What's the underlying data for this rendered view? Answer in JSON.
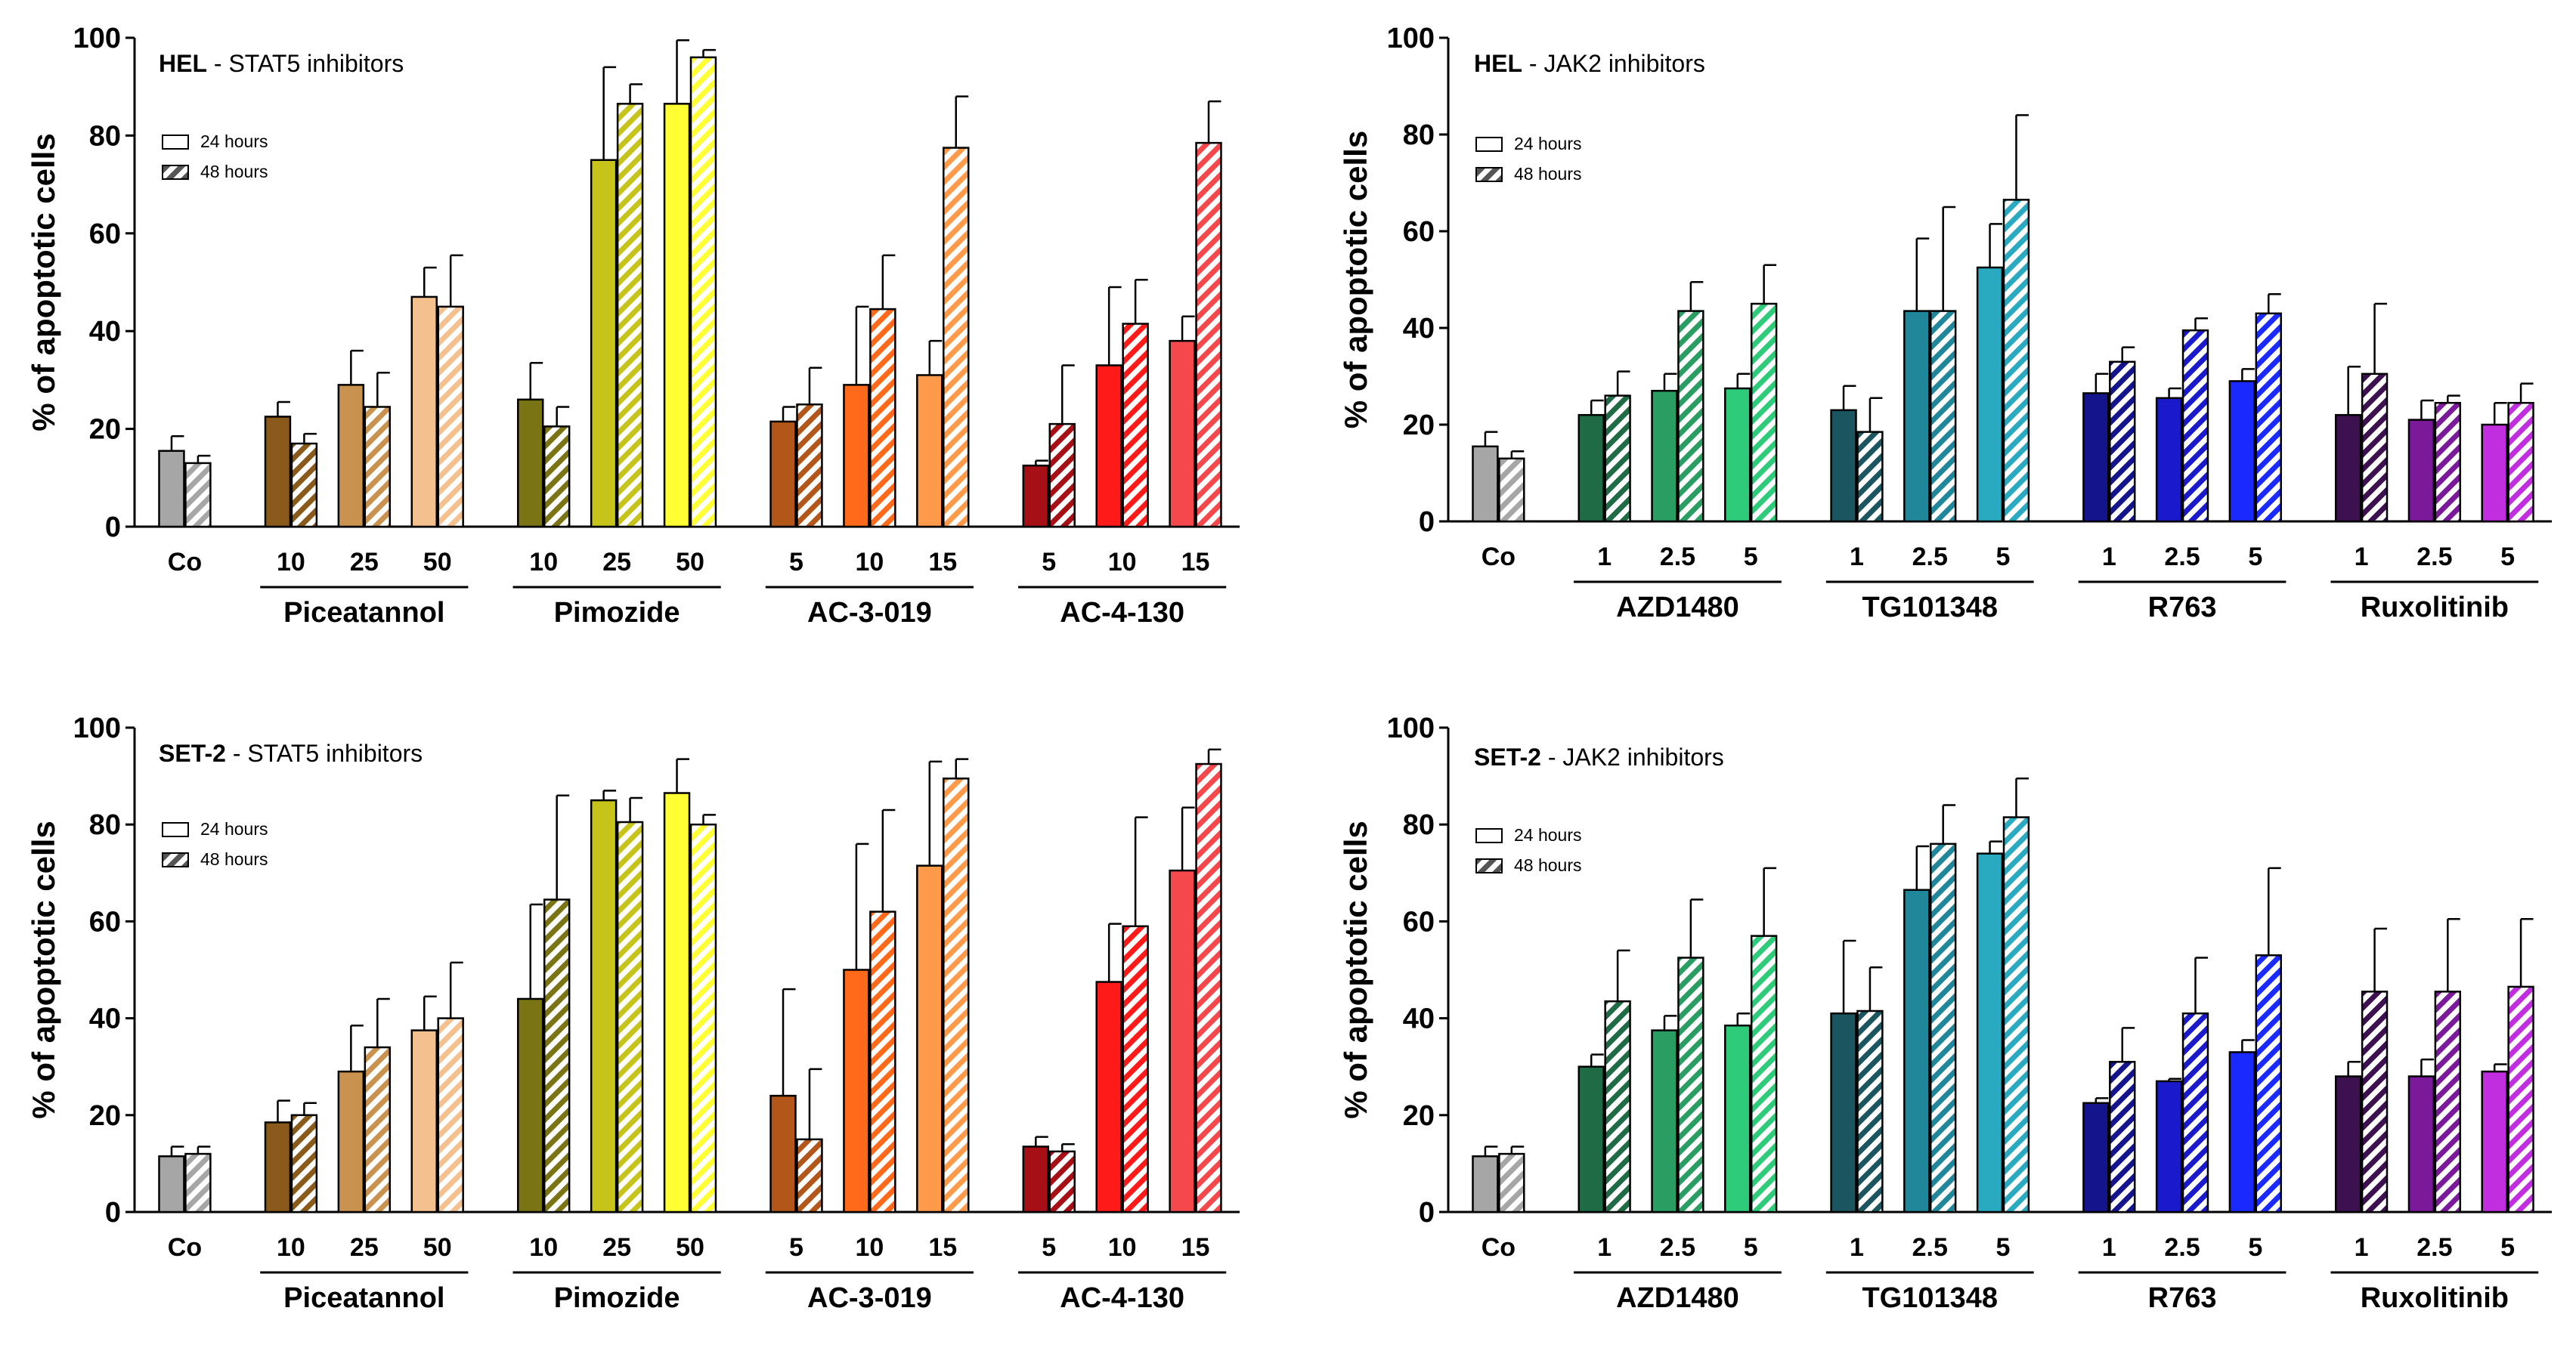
{
  "chart_data": [
    {
      "type": "bar",
      "cell_line": "HEL",
      "title_suffix": " - STAT5 inhibitors",
      "ylabel": "% of apoptotic cells",
      "ylim": [
        0,
        100
      ],
      "yticks": [
        "0",
        "20",
        "40",
        "60",
        "80",
        "100"
      ],
      "legend": [
        "24 hours",
        "48 hours"
      ],
      "groups": [
        {
          "label": "",
          "bars": [
            {
              "tick": "Co",
              "color": "#a6a6a6",
              "v24": 15.5,
              "e24": 3.0,
              "v48": 13.0,
              "e48": 1.5
            }
          ]
        },
        {
          "label": "Piceatannol",
          "bars": [
            {
              "tick": "10",
              "color": "#8a5a1a",
              "v24": 22.5,
              "e24": 3.0,
              "v48": 17.0,
              "e48": 2.0
            },
            {
              "tick": "25",
              "color": "#c9924f",
              "v24": 29.0,
              "e24": 7.0,
              "v48": 24.5,
              "e48": 7.0
            },
            {
              "tick": "50",
              "color": "#f4c08e",
              "v24": 47.0,
              "e24": 6.0,
              "v48": 45.0,
              "e48": 10.5
            }
          ]
        },
        {
          "label": "Pimozide",
          "bars": [
            {
              "tick": "10",
              "color": "#7a7414",
              "v24": 26.0,
              "e24": 7.5,
              "v48": 20.5,
              "e48": 4.0
            },
            {
              "tick": "25",
              "color": "#c6c41a",
              "v24": 75.0,
              "e24": 19.0,
              "v48": 86.5,
              "e48": 4.0
            },
            {
              "tick": "50",
              "color": "#ffff33",
              "v24": 86.5,
              "e24": 13.0,
              "v48": 96.0,
              "e48": 1.5
            }
          ]
        },
        {
          "label": "AC-3-019",
          "bars": [
            {
              "tick": "5",
              "color": "#b2561a",
              "v24": 21.5,
              "e24": 3.0,
              "v48": 25.0,
              "e48": 7.5
            },
            {
              "tick": "10",
              "color": "#ff6a1a",
              "v24": 29.0,
              "e24": 16.0,
              "v48": 44.5,
              "e48": 11.0
            },
            {
              "tick": "15",
              "color": "#ff9a4a",
              "v24": 31.0,
              "e24": 7.0,
              "v48": 77.5,
              "e48": 10.5
            }
          ]
        },
        {
          "label": "AC-4-130",
          "bars": [
            {
              "tick": "5",
              "color": "#a50f15",
              "v24": 12.5,
              "e24": 1.0,
              "v48": 21.0,
              "e48": 12.0
            },
            {
              "tick": "10",
              "color": "#ff1a1a",
              "v24": 33.0,
              "e24": 16.0,
              "v48": 41.5,
              "e48": 9.0
            },
            {
              "tick": "15",
              "color": "#f4484c",
              "v24": 38.0,
              "e24": 5.0,
              "v48": 78.5,
              "e48": 8.5
            }
          ]
        }
      ]
    },
    {
      "type": "bar",
      "cell_line": "HEL",
      "title_suffix": " - JAK2 inhibitors",
      "ylabel": "% of apoptotic cells",
      "ylim": [
        0,
        100
      ],
      "yticks": [
        "0",
        "20",
        "40",
        "60",
        "80",
        "100"
      ],
      "legend": [
        "24 hours",
        "48 hours"
      ],
      "groups": [
        {
          "label": "",
          "bars": [
            {
              "tick": "Co",
              "color": "#a6a6a6",
              "v24": 15.5,
              "e24": 3.0,
              "v48": 13.0,
              "e48": 1.5
            }
          ]
        },
        {
          "label": "AZD1480",
          "bars": [
            {
              "tick": "1",
              "color": "#1e6b45",
              "v24": 22.0,
              "e24": 3.0,
              "v48": 26.0,
              "e48": 5.0
            },
            {
              "tick": "2.5",
              "color": "#2a9e62",
              "v24": 27.0,
              "e24": 3.5,
              "v48": 43.5,
              "e48": 6.0
            },
            {
              "tick": "5",
              "color": "#2ecc7a",
              "v24": 27.5,
              "e24": 3.0,
              "v48": 45.0,
              "e48": 8.0
            }
          ]
        },
        {
          "label": "TG101348",
          "bars": [
            {
              "tick": "1",
              "color": "#1a5560",
              "v24": 23.0,
              "e24": 5.0,
              "v48": 18.5,
              "e48": 7.0
            },
            {
              "tick": "2.5",
              "color": "#20879a",
              "v24": 43.5,
              "e24": 15.0,
              "v48": 43.5,
              "e48": 21.5
            },
            {
              "tick": "5",
              "color": "#2aaac0",
              "v24": 52.5,
              "e24": 9.0,
              "v48": 66.5,
              "e48": 17.5
            }
          ]
        },
        {
          "label": "R763",
          "bars": [
            {
              "tick": "1",
              "color": "#14148c",
              "v24": 26.5,
              "e24": 4.0,
              "v48": 33.0,
              "e48": 3.0
            },
            {
              "tick": "2.5",
              "color": "#1a1acc",
              "v24": 25.5,
              "e24": 2.0,
              "v48": 39.5,
              "e48": 2.5
            },
            {
              "tick": "5",
              "color": "#1a2aff",
              "v24": 29.0,
              "e24": 2.5,
              "v48": 43.0,
              "e48": 4.0
            }
          ]
        },
        {
          "label": "Ruxolitinib",
          "bars": [
            {
              "tick": "1",
              "color": "#3d1050",
              "v24": 22.0,
              "e24": 10.0,
              "v48": 30.5,
              "e48": 14.5
            },
            {
              "tick": "2.5",
              "color": "#7a1a9a",
              "v24": 21.0,
              "e24": 4.0,
              "v48": 24.5,
              "e48": 1.5
            },
            {
              "tick": "5",
              "color": "#c02ee0",
              "v24": 20.0,
              "e24": 4.5,
              "v48": 24.5,
              "e48": 4.0
            }
          ]
        }
      ]
    },
    {
      "type": "bar",
      "cell_line": "SET-2",
      "title_suffix": " - STAT5 inhibitors",
      "ylabel": "% of apoptotic cells",
      "ylim": [
        0,
        100
      ],
      "yticks": [
        "0",
        "20",
        "40",
        "60",
        "80",
        "100"
      ],
      "legend": [
        "24 hours",
        "48 hours"
      ],
      "groups": [
        {
          "label": "",
          "bars": [
            {
              "tick": "Co",
              "color": "#a6a6a6",
              "v24": 11.5,
              "e24": 2.0,
              "v48": 12.0,
              "e48": 1.5
            }
          ]
        },
        {
          "label": "Piceatannol",
          "bars": [
            {
              "tick": "10",
              "color": "#8a5a1a",
              "v24": 18.5,
              "e24": 4.5,
              "v48": 20.0,
              "e48": 2.5
            },
            {
              "tick": "25",
              "color": "#c9924f",
              "v24": 29.0,
              "e24": 9.5,
              "v48": 34.0,
              "e48": 10.0
            },
            {
              "tick": "50",
              "color": "#f4c08e",
              "v24": 37.5,
              "e24": 7.0,
              "v48": 40.0,
              "e48": 11.5
            }
          ]
        },
        {
          "label": "Pimozide",
          "bars": [
            {
              "tick": "10",
              "color": "#7a7414",
              "v24": 44.0,
              "e24": 19.5,
              "v48": 64.5,
              "e48": 21.5
            },
            {
              "tick": "25",
              "color": "#c6c41a",
              "v24": 85.0,
              "e24": 2.0,
              "v48": 80.5,
              "e48": 5.0
            },
            {
              "tick": "50",
              "color": "#ffff33",
              "v24": 86.5,
              "e24": 7.0,
              "v48": 80.0,
              "e48": 2.0
            }
          ]
        },
        {
          "label": "AC-3-019",
          "bars": [
            {
              "tick": "5",
              "color": "#b2561a",
              "v24": 24.0,
              "e24": 22.0,
              "v48": 15.0,
              "e48": 14.5
            },
            {
              "tick": "10",
              "color": "#ff6a1a",
              "v24": 50.0,
              "e24": 26.0,
              "v48": 62.0,
              "e48": 21.0
            },
            {
              "tick": "15",
              "color": "#ff9a4a",
              "v24": 71.5,
              "e24": 21.5,
              "v48": 89.5,
              "e48": 4.0
            }
          ]
        },
        {
          "label": "AC-4-130",
          "bars": [
            {
              "tick": "5",
              "color": "#a50f15",
              "v24": 13.5,
              "e24": 2.0,
              "v48": 12.5,
              "e48": 1.5
            },
            {
              "tick": "10",
              "color": "#ff1a1a",
              "v24": 47.5,
              "e24": 12.0,
              "v48": 59.0,
              "e48": 22.5
            },
            {
              "tick": "15",
              "color": "#f4484c",
              "v24": 70.5,
              "e24": 13.0,
              "v48": 92.5,
              "e48": 3.0
            }
          ]
        }
      ]
    },
    {
      "type": "bar",
      "cell_line": "SET-2",
      "title_suffix": " - JAK2 inhibitors",
      "ylabel": "% of apoptotic cells",
      "ylim": [
        0,
        100
      ],
      "yticks": [
        "0",
        "20",
        "40",
        "60",
        "80",
        "100"
      ],
      "legend": [
        "24 hours",
        "48 hours"
      ],
      "groups": [
        {
          "label": "",
          "bars": [
            {
              "tick": "Co",
              "color": "#a6a6a6",
              "v24": 11.5,
              "e24": 2.0,
              "v48": 12.0,
              "e48": 1.5
            }
          ]
        },
        {
          "label": "AZD1480",
          "bars": [
            {
              "tick": "1",
              "color": "#1e6b45",
              "v24": 30.0,
              "e24": 2.5,
              "v48": 43.5,
              "e48": 10.5
            },
            {
              "tick": "2.5",
              "color": "#2a9e62",
              "v24": 37.5,
              "e24": 3.0,
              "v48": 52.5,
              "e48": 12.0
            },
            {
              "tick": "5",
              "color": "#2ecc7a",
              "v24": 38.5,
              "e24": 2.5,
              "v48": 57.0,
              "e48": 14.0
            }
          ]
        },
        {
          "label": "TG101348",
          "bars": [
            {
              "tick": "1",
              "color": "#1a5560",
              "v24": 41.0,
              "e24": 15.0,
              "v48": 41.5,
              "e48": 9.0
            },
            {
              "tick": "2.5",
              "color": "#20879a",
              "v24": 66.5,
              "e24": 9.0,
              "v48": 76.0,
              "e48": 8.0
            },
            {
              "tick": "5",
              "color": "#2aaac0",
              "v24": 74.0,
              "e24": 2.5,
              "v48": 81.5,
              "e48": 8.0
            }
          ]
        },
        {
          "label": "R763",
          "bars": [
            {
              "tick": "1",
              "color": "#14148c",
              "v24": 22.5,
              "e24": 1.0,
              "v48": 31.0,
              "e48": 7.0
            },
            {
              "tick": "2.5",
              "color": "#1a1acc",
              "v24": 27.0,
              "e24": 0.5,
              "v48": 41.0,
              "e48": 11.5
            },
            {
              "tick": "5",
              "color": "#1a2aff",
              "v24": 33.0,
              "e24": 2.5,
              "v48": 53.0,
              "e48": 18.0
            }
          ]
        },
        {
          "label": "Ruxolitinib",
          "bars": [
            {
              "tick": "1",
              "color": "#3d1050",
              "v24": 28.0,
              "e24": 3.0,
              "v48": 45.5,
              "e48": 13.0
            },
            {
              "tick": "2.5",
              "color": "#7a1a9a",
              "v24": 28.0,
              "e24": 3.5,
              "v48": 45.5,
              "e48": 15.0
            },
            {
              "tick": "5",
              "color": "#c02ee0",
              "v24": 29.0,
              "e24": 1.5,
              "v48": 46.5,
              "e48": 14.0
            }
          ]
        }
      ]
    }
  ]
}
